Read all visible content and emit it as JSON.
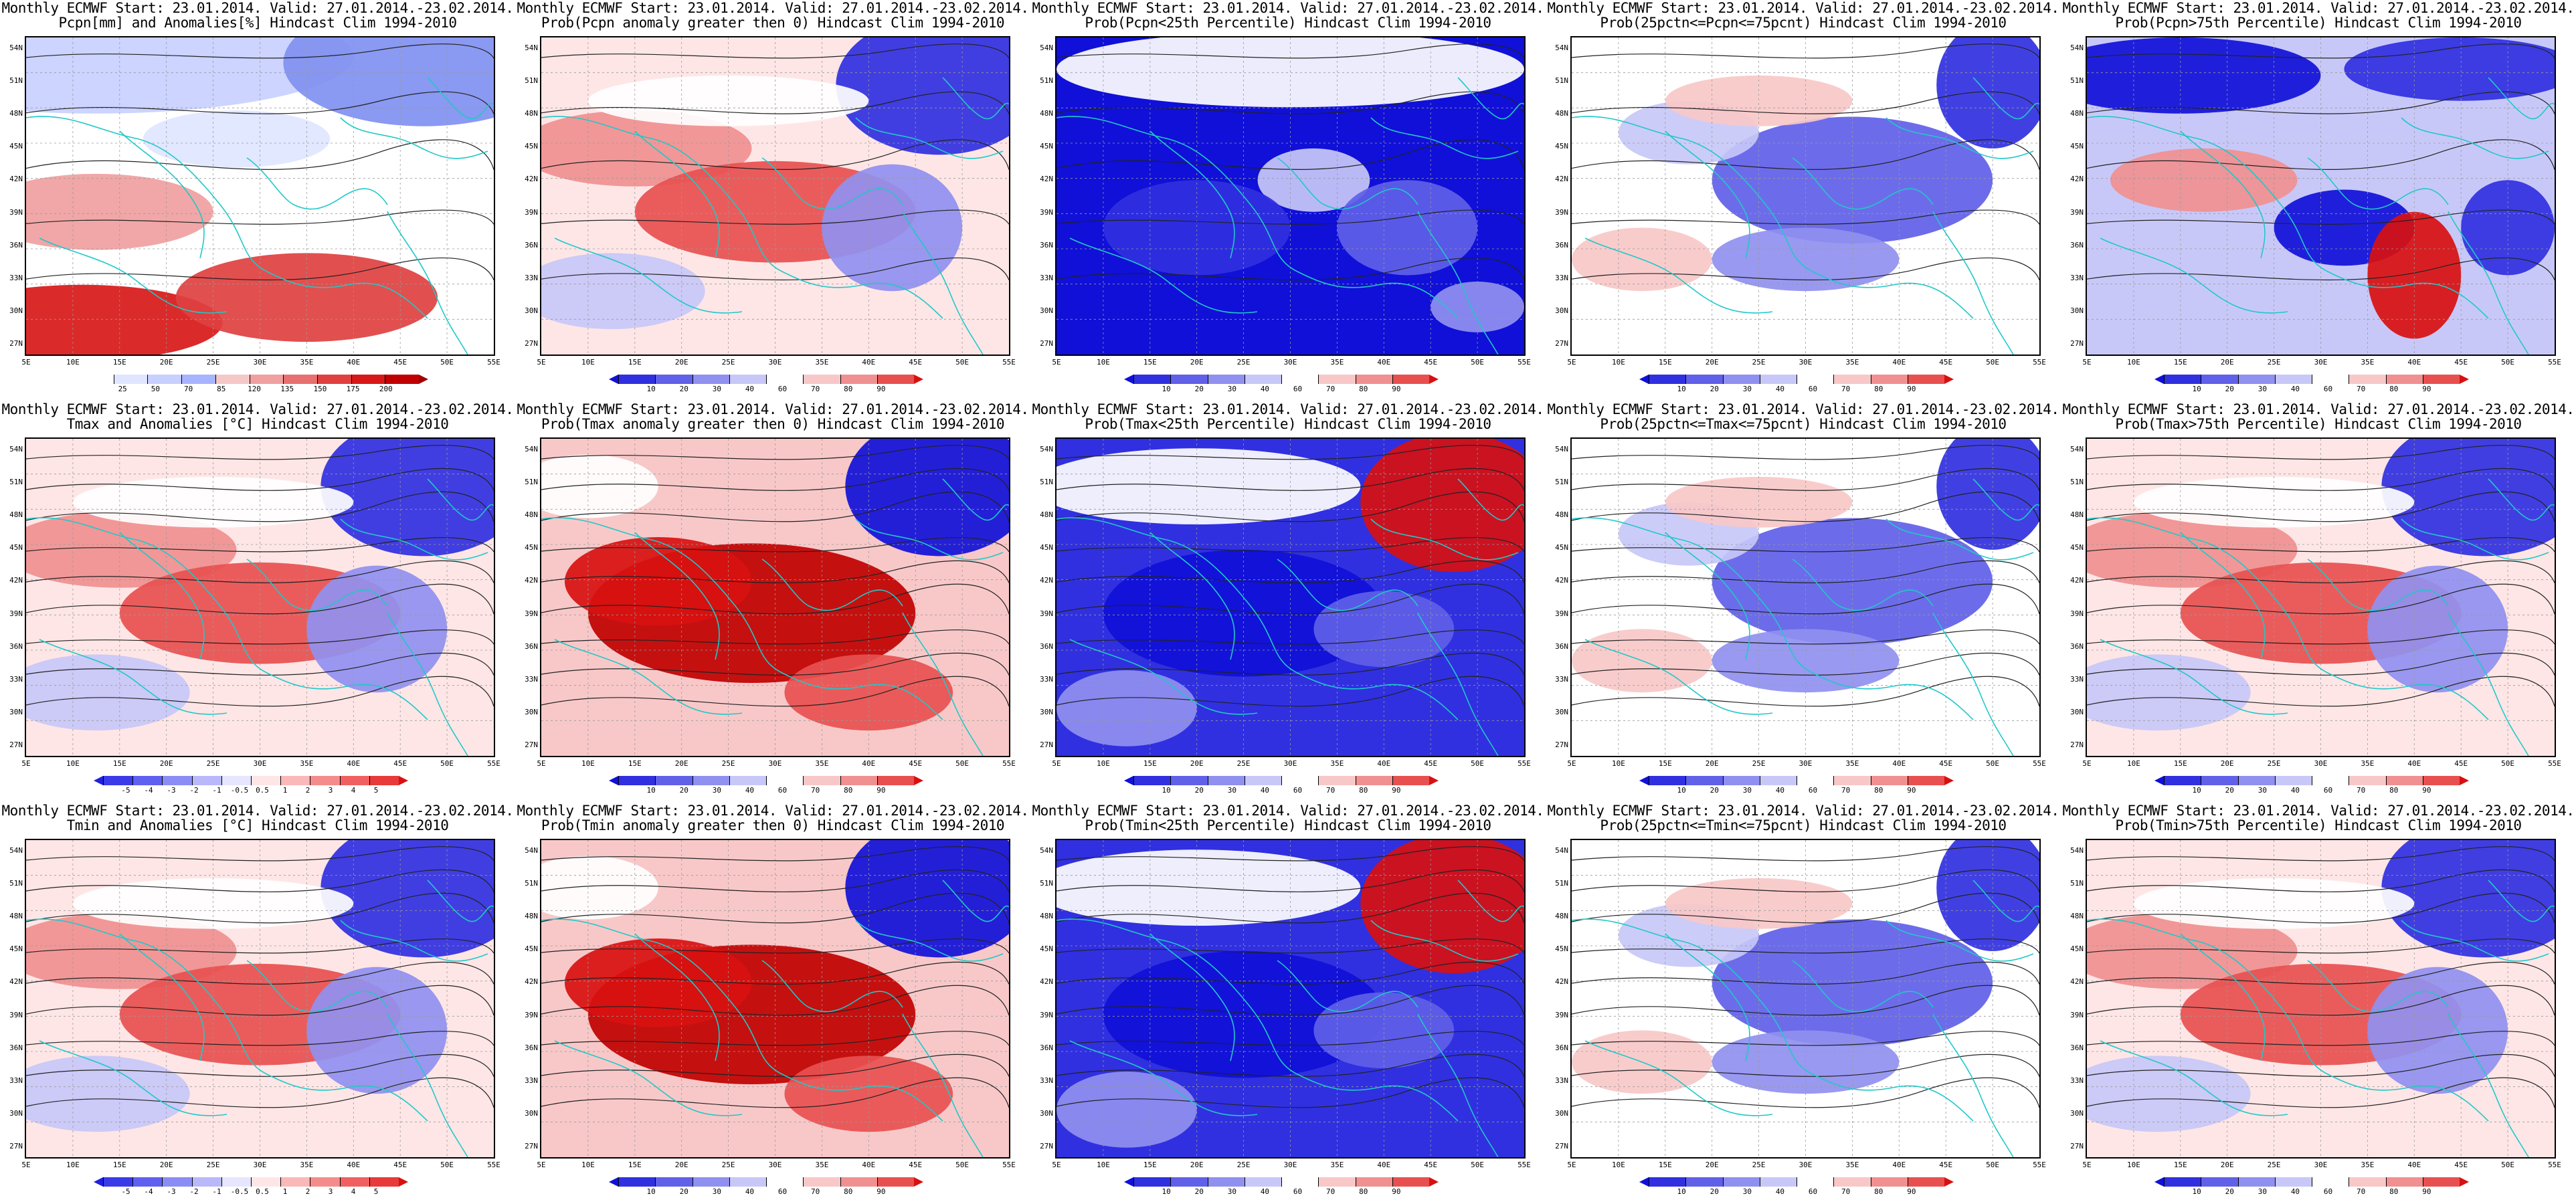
{
  "common": {
    "lat_ticks": [
      "54N",
      "51N",
      "48N",
      "45N",
      "42N",
      "39N",
      "36N",
      "33N",
      "30N",
      "27N"
    ],
    "lon_ticks": [
      "5E",
      "10E",
      "15E",
      "20E",
      "25E",
      "30E",
      "35E",
      "40E",
      "45E",
      "50E",
      "55E"
    ]
  },
  "colorbars": {
    "pcpn_anom": {
      "colors": [
        "#ffffff",
        "#e0e6ff",
        "#c8d0ff",
        "#a8b4ff",
        "#f5c8c8",
        "#f0a0a0",
        "#e87070",
        "#e04040",
        "#d81818",
        "#c00000",
        "#a00000"
      ],
      "labels": [
        "25",
        "50",
        "70",
        "85",
        "120",
        "135",
        "150",
        "175",
        "200"
      ],
      "left_arrow": false
    },
    "temp_anom": {
      "colors": [
        "#2020e0",
        "#3a3ae8",
        "#6060f0",
        "#8c8cf5",
        "#b8b8fa",
        "#e6e6ff",
        "#ffe6e6",
        "#fab8b8",
        "#f58c8c",
        "#f06060",
        "#e83a3a",
        "#d81010"
      ],
      "labels": [
        "-5",
        "-4",
        "-3",
        "-2",
        "-1",
        "-0.5",
        "0.5",
        "1",
        "2",
        "3",
        "4",
        "5"
      ],
      "left_arrow": true
    },
    "prob": {
      "colors": [
        "#1010d8",
        "#3030e0",
        "#6060e8",
        "#9090f0",
        "#c8c8f8",
        "#ffffff",
        "#f8c8c8",
        "#f09090",
        "#e85050",
        "#d81010"
      ],
      "labels": [
        "10",
        "20",
        "30",
        "40",
        "60",
        "70",
        "80",
        "90"
      ],
      "left_arrow": true
    }
  },
  "panels": [
    {
      "title1": "Monthly ECMWF Start: 23.01.2014. Valid: 27.01.2014.-23.02.2014.",
      "title2": "Pcpn[mm] and Anomalies[%] Hindcast Clim 1994-2010",
      "bar": "pcpn_anom",
      "field": "pcpn",
      "tone": "red-south"
    },
    {
      "title1": "Monthly ECMWF Start: 23.01.2014. Valid: 27.01.2014.-23.02.2014.",
      "title2": "Prob(Pcpn anomaly greater then 0) Hindcast Clim 1994-2010",
      "bar": "prob",
      "field": "pcpn",
      "tone": "red-mixed"
    },
    {
      "title1": "Monthly ECMWF Start: 23.01.2014. Valid: 27.01.2014.-23.02.2014.",
      "title2": "Prob(Pcpn<25th Percentile) Hindcast Clim 1994-2010",
      "bar": "prob",
      "field": "pcpn",
      "tone": "blue"
    },
    {
      "title1": "Monthly ECMWF Start: 23.01.2014. Valid: 27.01.2014.-23.02.2014.",
      "title2": "Prob(25pctn<=Pcpn<=75pcnt) Hindcast Clim 1994-2010",
      "bar": "prob",
      "field": "pcpn",
      "tone": "mixed"
    },
    {
      "title1": "Monthly ECMWF Start: 23.01.2014. Valid: 27.01.2014.-23.02.2014.",
      "title2": "Prob(Pcpn>75th Percentile) Hindcast Clim 1994-2010",
      "bar": "prob",
      "field": "pcpn",
      "tone": "blue-red"
    },
    {
      "title1": "Monthly ECMWF Start: 23.01.2014. Valid: 27.01.2014.-23.02.2014.",
      "title2": "Tmax and Anomalies [°C] Hindcast Clim 1994-2010",
      "bar": "temp_anom",
      "field": "temp",
      "tone": "red-mixed"
    },
    {
      "title1": "Monthly ECMWF Start: 23.01.2014. Valid: 27.01.2014.-23.02.2014.",
      "title2": "Prob(Tmax anomaly greater then 0) Hindcast Clim 1994-2010",
      "bar": "prob",
      "field": "temp",
      "tone": "red-strong"
    },
    {
      "title1": "Monthly ECMWF Start: 23.01.2014. Valid: 27.01.2014.-23.02.2014.",
      "title2": "Prob(Tmax<25th Percentile) Hindcast Clim 1994-2010",
      "bar": "prob",
      "field": "temp",
      "tone": "blue-ne-red"
    },
    {
      "title1": "Monthly ECMWF Start: 23.01.2014. Valid: 27.01.2014.-23.02.2014.",
      "title2": "Prob(25pctn<=Tmax<=75pcnt) Hindcast Clim 1994-2010",
      "bar": "prob",
      "field": "temp",
      "tone": "mixed"
    },
    {
      "title1": "Monthly ECMWF Start: 23.01.2014. Valid: 27.01.2014.-23.02.2014.",
      "title2": "Prob(Tmax>75th Percentile) Hindcast Clim 1994-2010",
      "bar": "prob",
      "field": "temp",
      "tone": "red-mixed"
    },
    {
      "title1": "Monthly ECMWF Start: 23.01.2014. Valid: 27.01.2014.-23.02.2014.",
      "title2": "Tmin and Anomalies [°C] Hindcast Clim 1994-2010",
      "bar": "temp_anom",
      "field": "temp",
      "tone": "red-mixed"
    },
    {
      "title1": "Monthly ECMWF Start: 23.01.2014. Valid: 27.01.2014.-23.02.2014.",
      "title2": "Prob(Tmin anomaly greater then 0) Hindcast Clim 1994-2010",
      "bar": "prob",
      "field": "temp",
      "tone": "red-strong"
    },
    {
      "title1": "Monthly ECMWF Start: 23.01.2014. Valid: 27.01.2014.-23.02.2014.",
      "title2": "Prob(Tmin<25th Percentile) Hindcast Clim 1994-2010",
      "bar": "prob",
      "field": "temp",
      "tone": "blue-ne-red"
    },
    {
      "title1": "Monthly ECMWF Start: 23.01.2014. Valid: 27.01.2014.-23.02.2014.",
      "title2": "Prob(25pctn<=Tmin<=75pcnt) Hindcast Clim 1994-2010",
      "bar": "prob",
      "field": "temp",
      "tone": "mixed"
    },
    {
      "title1": "Monthly ECMWF Start: 23.01.2014. Valid: 27.01.2014.-23.02.2014.",
      "title2": "Prob(Tmin>75th Percentile) Hindcast Clim 1994-2010",
      "bar": "prob",
      "field": "temp",
      "tone": "red-mixed"
    }
  ]
}
